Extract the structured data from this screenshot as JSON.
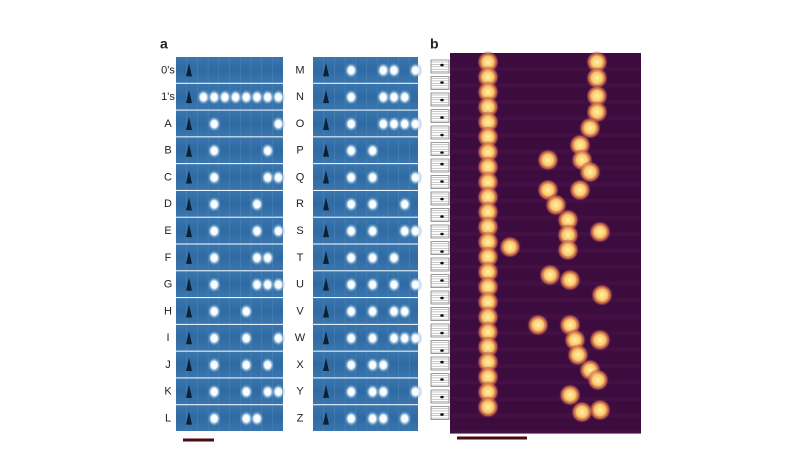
{
  "panel_a": {
    "label": "a",
    "left_column": [
      "0's",
      "1's",
      "A",
      "B",
      "C",
      "D",
      "E",
      "F",
      "G",
      "H",
      "I",
      "J",
      "K",
      "L"
    ],
    "right_column": [
      "M",
      "N",
      "O",
      "P",
      "Q",
      "R",
      "S",
      "T",
      "U",
      "V",
      "W",
      "X",
      "Y",
      "Z"
    ]
  },
  "panel_b": {
    "label": "b"
  }
}
